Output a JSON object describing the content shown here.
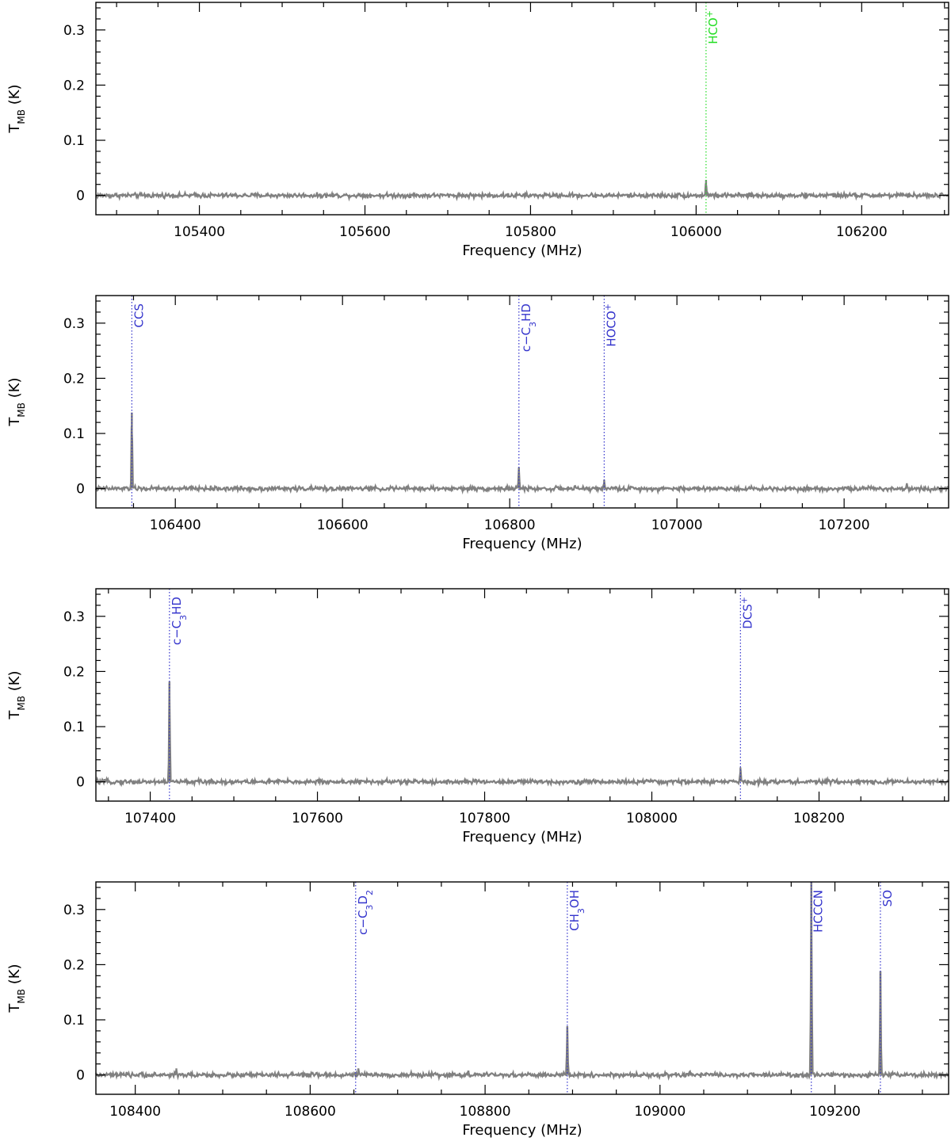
{
  "chart_data": [
    {
      "type": "line",
      "xlabel": "Frequency (MHz)",
      "ylabel": "T",
      "ylabel_sub": "MB",
      "ylabel_unit": "(K)",
      "xlim": [
        105275,
        106305
      ],
      "ylim": [
        -0.035,
        0.35
      ],
      "xticks": [
        105400,
        105600,
        105800,
        106000,
        106200
      ],
      "yticks": [
        0,
        0.1,
        0.2,
        0.3
      ],
      "ytick_labels": [
        "0",
        "0.1",
        "0.2",
        "0.3"
      ],
      "grid": false,
      "series": [
        {
          "color": "#808080",
          "noise": 0.003,
          "peaks": [
            {
              "x": 106012,
              "y": 0.028
            }
          ]
        }
      ],
      "annotations": [
        {
          "x": 106012,
          "color": "#22dd22",
          "label": "HCO",
          "sup": "+"
        }
      ]
    },
    {
      "type": "line",
      "xlabel": "Frequency (MHz)",
      "ylabel": "T",
      "ylabel_sub": "MB",
      "ylabel_unit": "(K)",
      "xlim": [
        106305,
        107325
      ],
      "ylim": [
        -0.035,
        0.35
      ],
      "xticks": [
        106400,
        106600,
        106800,
        107000,
        107200
      ],
      "yticks": [
        0,
        0.1,
        0.2,
        0.3
      ],
      "ytick_labels": [
        "0",
        "0.1",
        "0.2",
        "0.3"
      ],
      "grid": false,
      "series": [
        {
          "color": "#808080",
          "noise": 0.003,
          "peaks": [
            {
              "x": 106348,
              "y": 0.138
            },
            {
              "x": 106811,
              "y": 0.038
            },
            {
              "x": 106913,
              "y": 0.016
            },
            {
              "x": 107275,
              "y": 0.008
            }
          ]
        }
      ],
      "annotations": [
        {
          "x": 106348,
          "color": "#3333cc",
          "label": "CCS"
        },
        {
          "x": 106811,
          "color": "#3333cc",
          "label": "c−C",
          "sub": "3",
          "label2": "HD"
        },
        {
          "x": 106913,
          "color": "#3333cc",
          "label": "HOCO",
          "sup": "+"
        }
      ]
    },
    {
      "type": "line",
      "xlabel": "Frequency (MHz)",
      "ylabel": "T",
      "ylabel_sub": "MB",
      "ylabel_unit": "(K)",
      "xlim": [
        107335,
        108355
      ],
      "ylim": [
        -0.035,
        0.35
      ],
      "xticks": [
        107400,
        107600,
        107800,
        108000,
        108200
      ],
      "yticks": [
        0,
        0.1,
        0.2,
        0.3
      ],
      "ytick_labels": [
        "0",
        "0.1",
        "0.2",
        "0.3"
      ],
      "grid": false,
      "series": [
        {
          "color": "#808080",
          "noise": 0.003,
          "peaks": [
            {
              "x": 107423,
              "y": 0.182
            },
            {
              "x": 108106,
              "y": 0.026
            }
          ]
        }
      ],
      "annotations": [
        {
          "x": 107423,
          "color": "#3333cc",
          "label": "c−C",
          "sub": "3",
          "label2": "HD"
        },
        {
          "x": 108106,
          "color": "#3333cc",
          "label": "DCS",
          "sup": "+"
        }
      ]
    },
    {
      "type": "line",
      "xlabel": "Frequency (MHz)",
      "ylabel": "T",
      "ylabel_sub": "MB",
      "ylabel_unit": "(K)",
      "xlim": [
        108355,
        109330
      ],
      "ylim": [
        -0.035,
        0.35
      ],
      "xticks": [
        108400,
        108600,
        108800,
        109000,
        109200
      ],
      "yticks": [
        0,
        0.1,
        0.2,
        0.3
      ],
      "ytick_labels": [
        "0",
        "0.1",
        "0.2",
        "0.3"
      ],
      "grid": false,
      "series": [
        {
          "color": "#808080",
          "noise": 0.003,
          "peaks": [
            {
              "x": 108447,
              "y": 0.012
            },
            {
              "x": 108655,
              "y": 0.012
            },
            {
              "x": 108781,
              "y": 0.008
            },
            {
              "x": 108894,
              "y": 0.088
            },
            {
              "x": 109034,
              "y": 0.007
            },
            {
              "x": 109173,
              "y": 0.36
            },
            {
              "x": 109252,
              "y": 0.188
            }
          ]
        }
      ],
      "annotations": [
        {
          "x": 108652,
          "color": "#3333cc",
          "label": "c−C",
          "sub": "3",
          "label2": "D",
          "sub2": "2"
        },
        {
          "x": 108894,
          "color": "#3333cc",
          "label": "CH",
          "sub": "3",
          "label2": "OH"
        },
        {
          "x": 109173,
          "color": "#3333cc",
          "label": "HCCCN"
        },
        {
          "x": 109252,
          "color": "#3333cc",
          "label": "SO"
        }
      ]
    }
  ]
}
